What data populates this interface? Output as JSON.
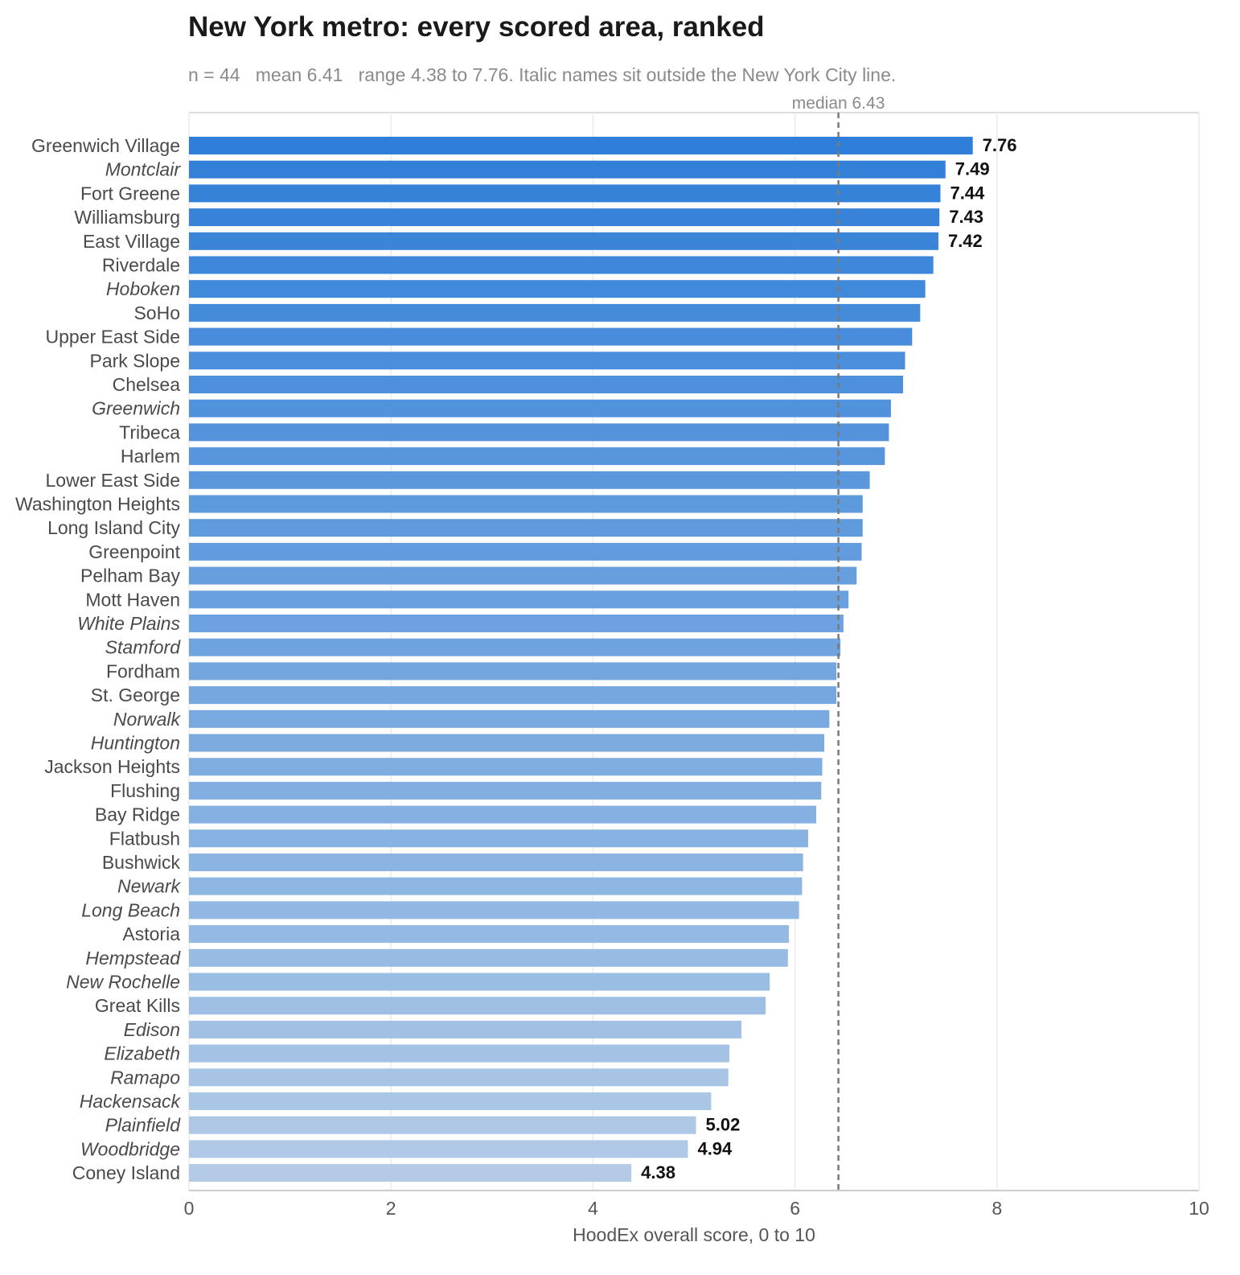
{
  "chart_data": {
    "type": "bar",
    "orientation": "horizontal",
    "title": "New York metro: every scored area, ranked",
    "subtitle": "n = 44   mean 6.41   range 4.38 to 7.76. Italic names sit outside the New York City line.",
    "xlabel": "HoodEx overall score, 0 to 10",
    "ylabel": "",
    "xlim": [
      0,
      10
    ],
    "xticks": [
      "0",
      "2",
      "4",
      "6",
      "8",
      "10"
    ],
    "grid": "vertical",
    "reference_line": {
      "value": 6.43,
      "label": "median 6.43",
      "style": "dashed"
    },
    "bar_color_top": "#2f7ed8",
    "bar_color_bottom": "#b3cbe6",
    "categories": [
      "Greenwich Village",
      "Montclair",
      "Fort Greene",
      "Williamsburg",
      "East Village",
      "Riverdale",
      "Hoboken",
      "SoHo",
      "Upper East Side",
      "Park Slope",
      "Chelsea",
      "Greenwich",
      "Tribeca",
      "Harlem",
      "Lower East Side",
      "Washington Heights",
      "Long Island City",
      "Greenpoint",
      "Pelham Bay",
      "Mott Haven",
      "White Plains",
      "Stamford",
      "Fordham",
      "St. George",
      "Norwalk",
      "Huntington",
      "Jackson Heights",
      "Flushing",
      "Bay Ridge",
      "Flatbush",
      "Bushwick",
      "Newark",
      "Long Beach",
      "Astoria",
      "Hempstead",
      "New Rochelle",
      "Great Kills",
      "Edison",
      "Elizabeth",
      "Ramapo",
      "Hackensack",
      "Plainfield",
      "Woodbridge",
      "Coney Island"
    ],
    "values": [
      7.76,
      7.49,
      7.44,
      7.43,
      7.42,
      7.37,
      7.29,
      7.24,
      7.16,
      7.09,
      7.07,
      6.95,
      6.93,
      6.89,
      6.74,
      6.67,
      6.67,
      6.66,
      6.61,
      6.53,
      6.48,
      6.45,
      6.41,
      6.41,
      6.34,
      6.29,
      6.27,
      6.26,
      6.21,
      6.13,
      6.08,
      6.07,
      6.04,
      5.94,
      5.93,
      5.75,
      5.71,
      5.47,
      5.35,
      5.34,
      5.17,
      5.02,
      4.94,
      4.38
    ],
    "outside_nyc": [
      false,
      true,
      false,
      false,
      false,
      false,
      true,
      false,
      false,
      false,
      false,
      true,
      false,
      false,
      false,
      false,
      false,
      false,
      false,
      false,
      true,
      true,
      false,
      false,
      true,
      true,
      false,
      false,
      false,
      false,
      false,
      true,
      true,
      false,
      true,
      true,
      false,
      true,
      true,
      true,
      true,
      true,
      true,
      false
    ],
    "value_labels": {
      "0": "7.76",
      "1": "7.49",
      "2": "7.44",
      "3": "7.43",
      "4": "7.42",
      "41": "5.02",
      "42": "4.94",
      "43": "4.38"
    }
  }
}
